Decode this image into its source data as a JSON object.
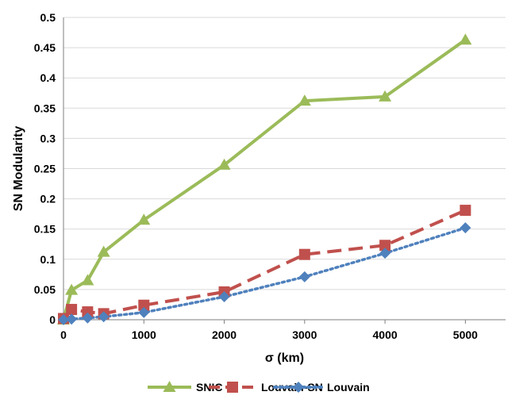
{
  "chart_data": {
    "type": "line",
    "title": "",
    "xlabel": "σ  (km)",
    "ylabel": "SN  Modularity",
    "xlim": [
      0,
      5500
    ],
    "ylim": [
      0,
      0.5
    ],
    "x_ticks": [
      0,
      1000,
      2000,
      3000,
      4000,
      5000
    ],
    "y_ticks": [
      0,
      0.05,
      0.1,
      0.15,
      0.2,
      0.25,
      0.3,
      0.35,
      0.4,
      0.45,
      0.5
    ],
    "x_tick_labels": [
      "0",
      "1000",
      "2000",
      "3000",
      "4000",
      "5000"
    ],
    "y_tick_labels": [
      "0",
      "0.05",
      "0.1",
      "0.15",
      "0.2",
      "0.25",
      "0.3",
      "0.35",
      "0.4",
      "0.45",
      "0.5"
    ],
    "grid": "horizontal",
    "legend_position": "bottom",
    "series": [
      {
        "name": "SNIC",
        "color": "#9bbb59",
        "line_style": "solid",
        "marker": "triangle",
        "x": [
          0,
          100,
          300,
          500,
          1000,
          2000,
          3000,
          4000,
          5000
        ],
        "y": [
          0,
          0.049,
          0.065,
          0.112,
          0.165,
          0.256,
          0.362,
          0.369,
          0.463
        ]
      },
      {
        "name": "Louvain-SN",
        "color": "#c0504d",
        "line_style": "dashed",
        "marker": "square",
        "x": [
          0,
          100,
          300,
          500,
          1000,
          2000,
          3000,
          4000,
          5000
        ],
        "y": [
          0.002,
          0.017,
          0.013,
          0.01,
          0.024,
          0.046,
          0.108,
          0.123,
          0.181
        ]
      },
      {
        "name": "Louvain",
        "color": "#4f81bd",
        "line_style": "dotted",
        "marker": "diamond",
        "x": [
          0,
          100,
          300,
          500,
          1000,
          2000,
          3000,
          4000,
          5000
        ],
        "y": [
          0,
          0.001,
          0.003,
          0.005,
          0.012,
          0.038,
          0.071,
          0.11,
          0.152
        ]
      }
    ]
  }
}
